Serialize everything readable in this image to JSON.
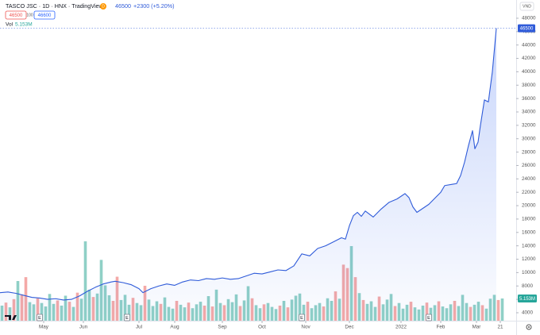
{
  "header": {
    "title": "TASCO JSC · 1D · HNX · TradingView",
    "badge": "D",
    "change": "+2300 (+5.20%)",
    "spread": "100",
    "buy": "46600",
    "vol_name": "Vol",
    "currency": "VND"
  },
  "chart_data": {
    "type": "area",
    "color": "#2f5bd9",
    "x": [
      0,
      2,
      4,
      6,
      8,
      10,
      12,
      14,
      16,
      18,
      20,
      22,
      24,
      26,
      28,
      29,
      31,
      33,
      35,
      36,
      38,
      40,
      42,
      44,
      46,
      48,
      50,
      52,
      54,
      56,
      58,
      60,
      62,
      64,
      66,
      68,
      70,
      72,
      74,
      76,
      78,
      80,
      82,
      84,
      86,
      87,
      88,
      89,
      90,
      91,
      92,
      94,
      96,
      98,
      100,
      102,
      103,
      104,
      105,
      106,
      108,
      110,
      111,
      112,
      114,
      115,
      116,
      117,
      118,
      119,
      119.6,
      120.4,
      121,
      122,
      123,
      124,
      125
    ],
    "values": [
      7000,
      7100,
      6900,
      6600,
      6300,
      6200,
      6000,
      6100,
      5900,
      6000,
      6500,
      7200,
      7800,
      8300,
      8600,
      8700,
      8500,
      8200,
      7600,
      7000,
      7600,
      8000,
      8300,
      8100,
      8600,
      8900,
      8800,
      9100,
      9000,
      9200,
      9000,
      9100,
      9500,
      9900,
      9800,
      10100,
      10400,
      10300,
      11000,
      12800,
      12500,
      13600,
      14000,
      14600,
      15200,
      15000,
      17000,
      18500,
      19000,
      18400,
      19200,
      18300,
      19500,
      20500,
      21000,
      21800,
      21200,
      19800,
      19000,
      19400,
      20200,
      21400,
      22000,
      23000,
      23200,
      23300,
      24500,
      26500,
      29000,
      31200,
      28500,
      29500,
      32000,
      35800,
      35500,
      40000,
      46500
    ],
    "xlim": [
      0,
      130
    ],
    "ylim": [
      2810,
      50250
    ],
    "yticks": [
      4000,
      6000,
      8000,
      10000,
      12000,
      14000,
      16000,
      18000,
      20000,
      22000,
      24000,
      26000,
      28000,
      30000,
      32000,
      34000,
      36000,
      38000,
      40000,
      42000,
      44000,
      46000,
      48000
    ],
    "xticks": [
      {
        "value": 11,
        "label": "May"
      },
      {
        "value": 21,
        "label": "Jun"
      },
      {
        "value": 35,
        "label": "Jul"
      },
      {
        "value": 44,
        "label": "Aug"
      },
      {
        "value": 56,
        "label": "Sep"
      },
      {
        "value": 66,
        "label": "Oct"
      },
      {
        "value": 77,
        "label": "Nov"
      },
      {
        "value": 88,
        "label": "Dec"
      },
      {
        "value": 101,
        "label": "2022"
      },
      {
        "value": 111,
        "label": "Feb"
      },
      {
        "value": 120,
        "label": "Mar"
      },
      {
        "value": 126,
        "label": "21"
      }
    ],
    "grid": false,
    "events": [
      {
        "x": 10,
        "label": "E"
      },
      {
        "x": 32,
        "label": "E"
      },
      {
        "x": 76,
        "label": "E"
      },
      {
        "x": 108,
        "label": "E"
      }
    ],
    "volume": {
      "y2lim": [
        0,
        73.6
      ],
      "last_label": "5.153M",
      "values": [
        3.5,
        4.2,
        3.1,
        5.0,
        9.2,
        6.1,
        10.1,
        4.3,
        3.8,
        5.2,
        4.1,
        3.3,
        6.2,
        3.9,
        4.7,
        3.5,
        5.8,
        4.4,
        3.2,
        6.5,
        5.1,
        18.4,
        7.2,
        5.5,
        6.3,
        14.1,
        8.2,
        5.9,
        4.6,
        10.2,
        4.8,
        6.0,
        3.7,
        5.3,
        4.1,
        3.6,
        8.1,
        4.9,
        3.4,
        4.5,
        3.9,
        5.4,
        3.2,
        2.8,
        4.6,
        3.7,
        3.1,
        4.2,
        2.9,
        3.8,
        4.4,
        3.5,
        5.7,
        3.3,
        7.2,
        4.1,
        3.6,
        5.0,
        4.3,
        6.1,
        3.4,
        4.7,
        8.0,
        5.2,
        3.6,
        2.9,
        3.8,
        4.1,
        3.2,
        2.7,
        3.5,
        4.6,
        3.1,
        4.9,
        5.8,
        6.3,
        3.7,
        4.4,
        2.9,
        3.6,
        4.1,
        3.3,
        5.2,
        4.6,
        6.8,
        5.1,
        13.0,
        12.2,
        17.3,
        10.1,
        6.4,
        4.8,
        3.9,
        4.5,
        3.2,
        5.6,
        3.8,
        4.9,
        6.2,
        3.4,
        4.1,
        2.8,
        3.7,
        4.4,
        3.1,
        2.6,
        3.5,
        4.2,
        3.0,
        3.6,
        4.5,
        3.3,
        2.9,
        3.8,
        4.6,
        3.4,
        6.0,
        4.1,
        3.2,
        3.7,
        4.4,
        3.6,
        2.8,
        5.1,
        6.0,
        4.8,
        5.153
      ],
      "colors": [
        "#8fd0c6",
        "#f4a9a7",
        "#8fd0c6",
        "#f4a9a7",
        "#8fd0c6",
        "#f4a9a7",
        "#f4a9a7",
        "#8fd0c6",
        "#8fd0c6",
        "#f4a9a7",
        "#8fd0c6",
        "#8fd0c6",
        "#8fd0c6",
        "#8fd0c6",
        "#f4a9a7",
        "#8fd0c6",
        "#8fd0c6",
        "#f4a9a7",
        "#8fd0c6",
        "#f4a9a7",
        "#8fd0c6",
        "#8fd0c6",
        "#8fd0c6",
        "#f4a9a7",
        "#8fd0c6",
        "#8fd0c6",
        "#8fd0c6",
        "#8fd0c6",
        "#f4a9a7",
        "#f4a9a7",
        "#8fd0c6",
        "#8fd0c6",
        "#8fd0c6",
        "#f4a9a7",
        "#8fd0c6",
        "#8fd0c6",
        "#f4a9a7",
        "#8fd0c6",
        "#8fd0c6",
        "#8fd0c6",
        "#f4a9a7",
        "#8fd0c6",
        "#8fd0c6",
        "#8fd0c6",
        "#f4a9a7",
        "#8fd0c6",
        "#8fd0c6",
        "#f4a9a7",
        "#8fd0c6",
        "#8fd0c6",
        "#8fd0c6",
        "#f4a9a7",
        "#8fd0c6",
        "#f4a9a7",
        "#8fd0c6",
        "#8fd0c6",
        "#f4a9a7",
        "#8fd0c6",
        "#8fd0c6",
        "#8fd0c6",
        "#f4a9a7",
        "#8fd0c6",
        "#8fd0c6",
        "#f4a9a7",
        "#8fd0c6",
        "#8fd0c6",
        "#f4a9a7",
        "#8fd0c6",
        "#8fd0c6",
        "#8fd0c6",
        "#f4a9a7",
        "#8fd0c6",
        "#f4a9a7",
        "#8fd0c6",
        "#8fd0c6",
        "#8fd0c6",
        "#8fd0c6",
        "#f4a9a7",
        "#8fd0c6",
        "#8fd0c6",
        "#8fd0c6",
        "#f4a9a7",
        "#8fd0c6",
        "#8fd0c6",
        "#f4a9a7",
        "#8fd0c6",
        "#f4a9a7",
        "#f4a9a7",
        "#8fd0c6",
        "#f4a9a7",
        "#8fd0c6",
        "#f4a9a7",
        "#8fd0c6",
        "#8fd0c6",
        "#8fd0c6",
        "#f4a9a7",
        "#8fd0c6",
        "#8fd0c6",
        "#8fd0c6",
        "#f4a9a7",
        "#8fd0c6",
        "#8fd0c6",
        "#8fd0c6",
        "#f4a9a7",
        "#8fd0c6",
        "#8fd0c6",
        "#8fd0c6",
        "#f4a9a7",
        "#8fd0c6",
        "#8fd0c6",
        "#f4a9a7",
        "#8fd0c6",
        "#8fd0c6",
        "#8fd0c6",
        "#f4a9a7",
        "#8fd0c6",
        "#8fd0c6",
        "#8fd0c6",
        "#f4a9a7",
        "#8fd0c6",
        "#8fd0c6",
        "#f4a9a7",
        "#8fd0c6",
        "#8fd0c6",
        "#8fd0c6",
        "#f4a9a7",
        "#8fd0c6"
      ]
    }
  }
}
